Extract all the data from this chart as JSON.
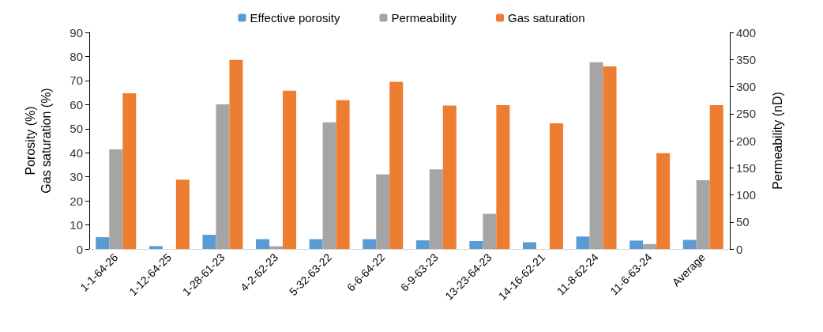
{
  "chart_data": {
    "type": "bar",
    "categories": [
      "1-1-64-26",
      "1-12-64-25",
      "1-28-61-23",
      "4-2-62-23",
      "5-32-63-22",
      "6-6-64-22",
      "6-9-63-23",
      "13-23-64-23",
      "14-16-62-21",
      "11-8-62-24",
      "11-6-63-24",
      "Average"
    ],
    "series": [
      {
        "name": "Effective porosity",
        "color": "#5b9bd5",
        "values": [
          4.9,
          1.2,
          5.9,
          4.1,
          4.1,
          4.1,
          3.6,
          3.3,
          2.8,
          5.2,
          3.5,
          3.8
        ]
      },
      {
        "name": "Permeability",
        "color": "#a5a5a5",
        "axis": "y2",
        "values": [
          184,
          0,
          267,
          5,
          234,
          138,
          147,
          65,
          0,
          345,
          9,
          127
        ]
      },
      {
        "name": "Gas saturation",
        "color": "#ed7d31",
        "values": [
          64.7,
          28.8,
          78.6,
          65.8,
          61.8,
          69.5,
          59.6,
          59.8,
          52.2,
          75.9,
          39.8,
          59.8
        ]
      }
    ],
    "ylabel": "Porosity (%)\nGas saturation (%)",
    "y2label": "Permeability (nD)",
    "ylim": [
      0,
      90
    ],
    "yticks": [
      0,
      10,
      20,
      30,
      40,
      50,
      60,
      70,
      80,
      90
    ],
    "y2lim": [
      0,
      400
    ],
    "y2ticks": [
      0,
      50,
      100,
      150,
      200,
      250,
      300,
      350,
      400
    ],
    "legend": "top",
    "grid": false
  }
}
